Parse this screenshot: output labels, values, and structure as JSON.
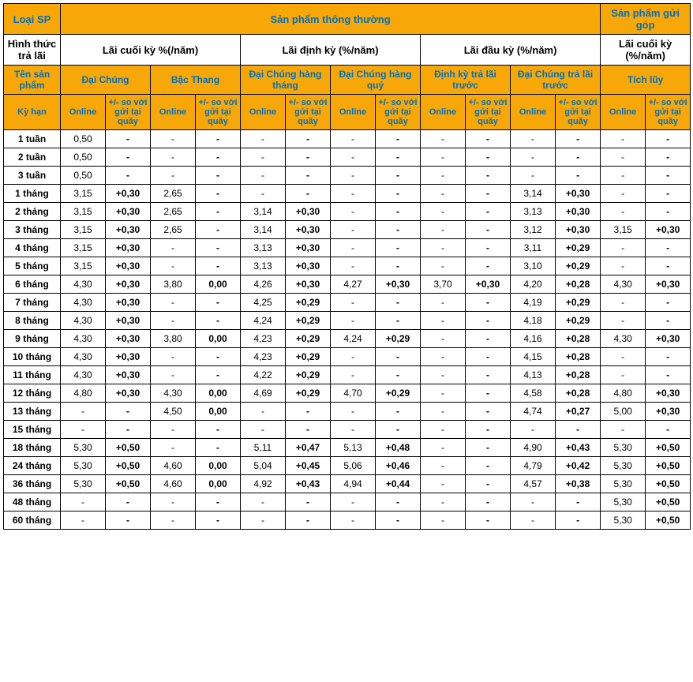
{
  "colors": {
    "header_bg": "#f7a708",
    "header_text": "#0070c0",
    "body_bg": "#ffffff",
    "body_text": "#000000",
    "border": "#000000"
  },
  "typography": {
    "font_family": "Arial, Helvetica, sans-serif",
    "header_fontsize_pt": 10,
    "body_fontsize_pt": 9
  },
  "headers": {
    "loai_sp": "Loại SP",
    "sp_thong_thuong": "Sản phẩm thông thường",
    "sp_gui_gop": "Sản phẩm gửi góp",
    "hinh_thuc_tra_lai": "Hình thức trả lãi",
    "lai_cuoi_ky": "Lãi cuối kỳ %(/năm)",
    "lai_dinh_ky": "Lãi định kỳ (%/năm)",
    "lai_dau_ky": "Lãi đầu kỳ (%/năm)",
    "lai_cuoi_ky2": "Lãi cuối kỳ (%/năm)",
    "ten_sp": "Tên sản phẩm",
    "dai_chung": "Đại Chúng",
    "bac_thang": "Bậc Thang",
    "dc_hang_thang": "Đại Chúng hàng tháng",
    "dc_hang_quy": "Đại Chúng hàng quý",
    "dinh_ky_tra_lai_truoc": "Định kỳ trả lãi trước",
    "dc_tra_lai_truoc": "Đại Chúng trả lãi trước",
    "tich_luy": "Tích lũy",
    "ky_han": "Kỳ hạn",
    "online": "Online",
    "diff": "+/- so với gửi tại quầy"
  },
  "terms": [
    "1 tuần",
    "2 tuần",
    "3 tuần",
    "1 tháng",
    "2 tháng",
    "3 tháng",
    "4 tháng",
    "5 tháng",
    "6 tháng",
    "7 tháng",
    "8 tháng",
    "9 tháng",
    "10 tháng",
    "11 tháng",
    "12 tháng",
    "13 tháng",
    "15 tháng",
    "18 tháng",
    "24 tháng",
    "36 tháng",
    "48 tháng",
    "60 tháng"
  ],
  "rows": [
    {
      "t": "1 tuần",
      "c": [
        [
          "0,50",
          "-"
        ],
        [
          "-",
          "-"
        ],
        [
          "-",
          "-"
        ],
        [
          "-",
          "-"
        ],
        [
          "-",
          "-"
        ],
        [
          "-",
          "-"
        ],
        [
          "-",
          "-"
        ]
      ]
    },
    {
      "t": "2 tuần",
      "c": [
        [
          "0,50",
          "-"
        ],
        [
          "-",
          "-"
        ],
        [
          "-",
          "-"
        ],
        [
          "-",
          "-"
        ],
        [
          "-",
          "-"
        ],
        [
          "-",
          "-"
        ],
        [
          "-",
          "-"
        ]
      ]
    },
    {
      "t": "3 tuần",
      "c": [
        [
          "0,50",
          "-"
        ],
        [
          "-",
          "-"
        ],
        [
          "-",
          "-"
        ],
        [
          "-",
          "-"
        ],
        [
          "-",
          "-"
        ],
        [
          "-",
          "-"
        ],
        [
          "-",
          "-"
        ]
      ]
    },
    {
      "t": "1 tháng",
      "c": [
        [
          "3,15",
          "+0,30"
        ],
        [
          "2,65",
          "-"
        ],
        [
          "-",
          "-"
        ],
        [
          "-",
          "-"
        ],
        [
          "-",
          "-"
        ],
        [
          "3,14",
          "+0,30"
        ],
        [
          "-",
          "-"
        ]
      ]
    },
    {
      "t": "2 tháng",
      "c": [
        [
          "3,15",
          "+0,30"
        ],
        [
          "2,65",
          "-"
        ],
        [
          "3,14",
          "+0,30"
        ],
        [
          "-",
          "-"
        ],
        [
          "-",
          "-"
        ],
        [
          "3,13",
          "+0,30"
        ],
        [
          "-",
          "-"
        ]
      ]
    },
    {
      "t": "3 tháng",
      "c": [
        [
          "3,15",
          "+0,30"
        ],
        [
          "2,65",
          "-"
        ],
        [
          "3,14",
          "+0,30"
        ],
        [
          "-",
          "-"
        ],
        [
          "-",
          "-"
        ],
        [
          "3,12",
          "+0,30"
        ],
        [
          "3,15",
          "+0,30"
        ]
      ]
    },
    {
      "t": "4 tháng",
      "c": [
        [
          "3,15",
          "+0,30"
        ],
        [
          "-",
          "-"
        ],
        [
          "3,13",
          "+0,30"
        ],
        [
          "-",
          "-"
        ],
        [
          "-",
          "-"
        ],
        [
          "3,11",
          "+0,29"
        ],
        [
          "-",
          "-"
        ]
      ]
    },
    {
      "t": "5 tháng",
      "c": [
        [
          "3,15",
          "+0,30"
        ],
        [
          "-",
          "-"
        ],
        [
          "3,13",
          "+0,30"
        ],
        [
          "-",
          "-"
        ],
        [
          "-",
          "-"
        ],
        [
          "3,10",
          "+0,29"
        ],
        [
          "-",
          "-"
        ]
      ]
    },
    {
      "t": "6 tháng",
      "c": [
        [
          "4,30",
          "+0,30"
        ],
        [
          "3,80",
          "0,00"
        ],
        [
          "4,26",
          "+0,30"
        ],
        [
          "4,27",
          "+0,30"
        ],
        [
          "3,70",
          "+0,30"
        ],
        [
          "4,20",
          "+0,28"
        ],
        [
          "4,30",
          "+0,30"
        ]
      ]
    },
    {
      "t": "7 tháng",
      "c": [
        [
          "4,30",
          "+0,30"
        ],
        [
          "-",
          "-"
        ],
        [
          "4,25",
          "+0,29"
        ],
        [
          "-",
          "-"
        ],
        [
          "-",
          "-"
        ],
        [
          "4,19",
          "+0,29"
        ],
        [
          "-",
          "-"
        ]
      ]
    },
    {
      "t": "8 tháng",
      "c": [
        [
          "4,30",
          "+0,30"
        ],
        [
          "-",
          "-"
        ],
        [
          "4,24",
          "+0,29"
        ],
        [
          "-",
          "-"
        ],
        [
          "-",
          "-"
        ],
        [
          "4,18",
          "+0,29"
        ],
        [
          "-",
          "-"
        ]
      ]
    },
    {
      "t": "9 tháng",
      "c": [
        [
          "4,30",
          "+0,30"
        ],
        [
          "3,80",
          "0,00"
        ],
        [
          "4,23",
          "+0,29"
        ],
        [
          "4,24",
          "+0,29"
        ],
        [
          "-",
          "-"
        ],
        [
          "4,16",
          "+0,28"
        ],
        [
          "4,30",
          "+0,30"
        ]
      ]
    },
    {
      "t": "10 tháng",
      "c": [
        [
          "4,30",
          "+0,30"
        ],
        [
          "-",
          "-"
        ],
        [
          "4,23",
          "+0,29"
        ],
        [
          "-",
          "-"
        ],
        [
          "-",
          "-"
        ],
        [
          "4,15",
          "+0,28"
        ],
        [
          "-",
          "-"
        ]
      ]
    },
    {
      "t": "11 tháng",
      "c": [
        [
          "4,30",
          "+0,30"
        ],
        [
          "-",
          "-"
        ],
        [
          "4,22",
          "+0,29"
        ],
        [
          "-",
          "-"
        ],
        [
          "-",
          "-"
        ],
        [
          "4,13",
          "+0,28"
        ],
        [
          "-",
          "-"
        ]
      ]
    },
    {
      "t": "12 tháng",
      "c": [
        [
          "4,80",
          "+0,30"
        ],
        [
          "4,30",
          "0,00"
        ],
        [
          "4,69",
          "+0,29"
        ],
        [
          "4,70",
          "+0,29"
        ],
        [
          "-",
          "-"
        ],
        [
          "4,58",
          "+0,28"
        ],
        [
          "4,80",
          "+0,30"
        ]
      ]
    },
    {
      "t": "13 tháng",
      "c": [
        [
          "-",
          "-"
        ],
        [
          "4,50",
          "0,00"
        ],
        [
          "-",
          "-"
        ],
        [
          "-",
          "-"
        ],
        [
          "-",
          "-"
        ],
        [
          "4,74",
          "+0,27"
        ],
        [
          "5,00",
          "+0,30"
        ]
      ]
    },
    {
      "t": "15 tháng",
      "c": [
        [
          "-",
          "-"
        ],
        [
          "-",
          "-"
        ],
        [
          "-",
          "-"
        ],
        [
          "-",
          "-"
        ],
        [
          "-",
          "-"
        ],
        [
          "-",
          "-"
        ],
        [
          "-",
          "-"
        ]
      ]
    },
    {
      "t": "18 tháng",
      "c": [
        [
          "5,30",
          "+0,50"
        ],
        [
          "-",
          "-"
        ],
        [
          "5,11",
          "+0,47"
        ],
        [
          "5,13",
          "+0,48"
        ],
        [
          "-",
          "-"
        ],
        [
          "4,90",
          "+0,43"
        ],
        [
          "5,30",
          "+0,50"
        ]
      ]
    },
    {
      "t": "24 tháng",
      "c": [
        [
          "5,30",
          "+0,50"
        ],
        [
          "4,60",
          "0,00"
        ],
        [
          "5,04",
          "+0,45"
        ],
        [
          "5,06",
          "+0,46"
        ],
        [
          "-",
          "-"
        ],
        [
          "4,79",
          "+0,42"
        ],
        [
          "5,30",
          "+0,50"
        ]
      ]
    },
    {
      "t": "36 tháng",
      "c": [
        [
          "5,30",
          "+0,50"
        ],
        [
          "4,60",
          "0,00"
        ],
        [
          "4,92",
          "+0,43"
        ],
        [
          "4,94",
          "+0,44"
        ],
        [
          "-",
          "-"
        ],
        [
          "4,57",
          "+0,38"
        ],
        [
          "5,30",
          "+0,50"
        ]
      ]
    },
    {
      "t": "48 tháng",
      "c": [
        [
          "-",
          "-"
        ],
        [
          "-",
          "-"
        ],
        [
          "-",
          "-"
        ],
        [
          "-",
          "-"
        ],
        [
          "-",
          "-"
        ],
        [
          "-",
          "-"
        ],
        [
          "5,30",
          "+0,50"
        ]
      ]
    },
    {
      "t": "60 tháng",
      "c": [
        [
          "-",
          "-"
        ],
        [
          "-",
          "-"
        ],
        [
          "-",
          "-"
        ],
        [
          "-",
          "-"
        ],
        [
          "-",
          "-"
        ],
        [
          "-",
          "-"
        ],
        [
          "5,30",
          "+0,50"
        ]
      ]
    }
  ]
}
